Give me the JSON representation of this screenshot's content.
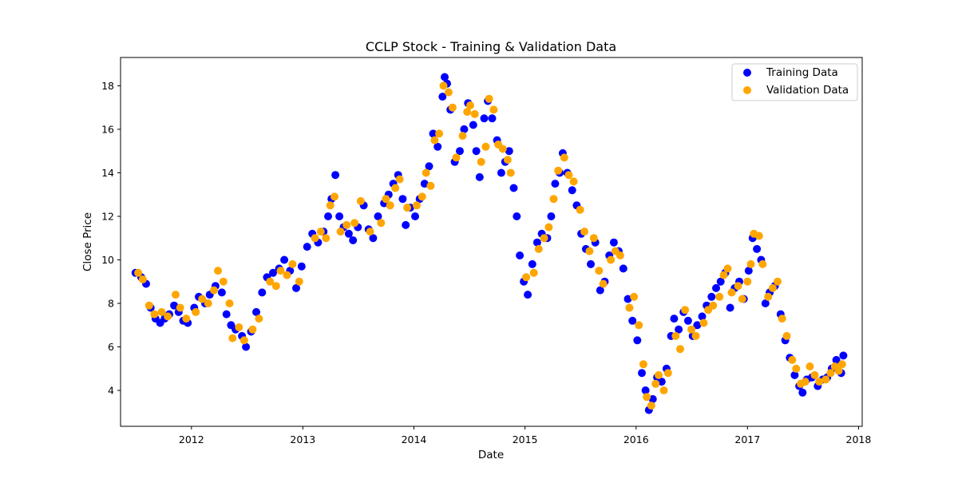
{
  "chart_data": {
    "type": "scatter",
    "title": "CCLP Stock - Training & Validation Data",
    "xlabel": "Date",
    "ylabel": "Close Price",
    "xlim": [
      "2011-05-13",
      "2018-01-13"
    ],
    "ylim": [
      2.35,
      19.3
    ],
    "x_ticks": [
      "2012",
      "2013",
      "2014",
      "2015",
      "2016",
      "2017",
      "2018"
    ],
    "y_ticks": [
      4,
      6,
      8,
      10,
      12,
      14,
      16,
      18
    ],
    "grid": false,
    "legend_position": "top-right",
    "series": [
      {
        "name": "Training Data",
        "color": "#0000ff",
        "points": [
          [
            "2011-07-01",
            9.4
          ],
          [
            "2011-07-20",
            9.2
          ],
          [
            "2011-08-05",
            8.9
          ],
          [
            "2011-08-20",
            7.8
          ],
          [
            "2011-09-05",
            7.3
          ],
          [
            "2011-09-20",
            7.1
          ],
          [
            "2011-10-05",
            7.3
          ],
          [
            "2011-10-20",
            7.5
          ],
          [
            "2011-11-05",
            7.9
          ],
          [
            "2011-11-20",
            7.6
          ],
          [
            "2011-12-05",
            7.2
          ],
          [
            "2011-12-20",
            7.1
          ],
          [
            "2012-01-10",
            7.8
          ],
          [
            "2012-01-25",
            8.3
          ],
          [
            "2012-02-15",
            8.0
          ],
          [
            "2012-03-01",
            8.4
          ],
          [
            "2012-03-20",
            8.8
          ],
          [
            "2012-04-10",
            8.5
          ],
          [
            "2012-04-25",
            7.5
          ],
          [
            "2012-05-10",
            7.0
          ],
          [
            "2012-05-25",
            6.8
          ],
          [
            "2012-06-15",
            6.5
          ],
          [
            "2012-06-28",
            6.0
          ],
          [
            "2012-07-15",
            6.7
          ],
          [
            "2012-08-01",
            7.6
          ],
          [
            "2012-08-20",
            8.5
          ],
          [
            "2012-09-05",
            9.2
          ],
          [
            "2012-09-25",
            9.4
          ],
          [
            "2012-10-15",
            9.6
          ],
          [
            "2012-11-01",
            10.0
          ],
          [
            "2012-11-20",
            9.5
          ],
          [
            "2012-12-10",
            8.7
          ],
          [
            "2012-12-28",
            9.7
          ],
          [
            "2013-01-15",
            10.6
          ],
          [
            "2013-02-01",
            11.2
          ],
          [
            "2013-02-20",
            10.8
          ],
          [
            "2013-03-10",
            11.3
          ],
          [
            "2013-03-25",
            12.0
          ],
          [
            "2013-04-05",
            12.8
          ],
          [
            "2013-04-18",
            13.9
          ],
          [
            "2013-05-01",
            12.0
          ],
          [
            "2013-05-15",
            11.5
          ],
          [
            "2013-06-01",
            11.2
          ],
          [
            "2013-06-15",
            10.9
          ],
          [
            "2013-07-01",
            11.5
          ],
          [
            "2013-07-20",
            12.5
          ],
          [
            "2013-08-05",
            11.4
          ],
          [
            "2013-08-20",
            11.0
          ],
          [
            "2013-09-05",
            12.0
          ],
          [
            "2013-09-25",
            12.6
          ],
          [
            "2013-10-10",
            13.0
          ],
          [
            "2013-10-25",
            13.5
          ],
          [
            "2013-11-10",
            13.9
          ],
          [
            "2013-11-25",
            12.8
          ],
          [
            "2013-12-05",
            11.6
          ],
          [
            "2013-12-20",
            12.4
          ],
          [
            "2014-01-05",
            12.0
          ],
          [
            "2014-01-20",
            12.8
          ],
          [
            "2014-02-05",
            13.5
          ],
          [
            "2014-02-20",
            14.3
          ],
          [
            "2014-03-05",
            15.8
          ],
          [
            "2014-03-20",
            15.2
          ],
          [
            "2014-04-05",
            17.5
          ],
          [
            "2014-04-12",
            18.4
          ],
          [
            "2014-04-20",
            18.1
          ],
          [
            "2014-05-01",
            16.9
          ],
          [
            "2014-05-15",
            14.5
          ],
          [
            "2014-06-01",
            15.0
          ],
          [
            "2014-06-15",
            16.0
          ],
          [
            "2014-06-28",
            17.2
          ],
          [
            "2014-07-15",
            16.2
          ],
          [
            "2014-07-25",
            15.0
          ],
          [
            "2014-08-05",
            13.8
          ],
          [
            "2014-08-20",
            16.5
          ],
          [
            "2014-09-01",
            17.3
          ],
          [
            "2014-09-15",
            16.5
          ],
          [
            "2014-10-01",
            15.5
          ],
          [
            "2014-10-15",
            14.0
          ],
          [
            "2014-10-28",
            14.5
          ],
          [
            "2014-11-10",
            15.0
          ],
          [
            "2014-11-25",
            13.3
          ],
          [
            "2014-12-05",
            12.0
          ],
          [
            "2014-12-15",
            10.2
          ],
          [
            "2014-12-28",
            9.0
          ],
          [
            "2015-01-10",
            8.4
          ],
          [
            "2015-01-25",
            9.8
          ],
          [
            "2015-02-10",
            10.8
          ],
          [
            "2015-02-25",
            11.2
          ],
          [
            "2015-03-15",
            11.0
          ],
          [
            "2015-03-28",
            12.0
          ],
          [
            "2015-04-10",
            13.5
          ],
          [
            "2015-04-25",
            14.0
          ],
          [
            "2015-05-05",
            14.9
          ],
          [
            "2015-05-20",
            14.0
          ],
          [
            "2015-06-05",
            13.2
          ],
          [
            "2015-06-20",
            12.5
          ],
          [
            "2015-07-05",
            11.2
          ],
          [
            "2015-07-20",
            10.5
          ],
          [
            "2015-08-05",
            9.8
          ],
          [
            "2015-08-20",
            10.8
          ],
          [
            "2015-09-05",
            8.6
          ],
          [
            "2015-09-20",
            9.0
          ],
          [
            "2015-10-05",
            10.2
          ],
          [
            "2015-10-20",
            10.8
          ],
          [
            "2015-11-05",
            10.4
          ],
          [
            "2015-11-20",
            9.6
          ],
          [
            "2015-12-05",
            8.2
          ],
          [
            "2015-12-20",
            7.2
          ],
          [
            "2016-01-05",
            6.3
          ],
          [
            "2016-01-20",
            4.8
          ],
          [
            "2016-02-01",
            4.0
          ],
          [
            "2016-02-12",
            3.1
          ],
          [
            "2016-02-25",
            3.6
          ],
          [
            "2016-03-10",
            4.6
          ],
          [
            "2016-03-25",
            4.4
          ],
          [
            "2016-04-10",
            5.0
          ],
          [
            "2016-04-25",
            6.5
          ],
          [
            "2016-05-05",
            7.3
          ],
          [
            "2016-05-20",
            6.8
          ],
          [
            "2016-06-05",
            7.6
          ],
          [
            "2016-06-20",
            7.2
          ],
          [
            "2016-07-05",
            6.5
          ],
          [
            "2016-07-20",
            7.0
          ],
          [
            "2016-08-05",
            7.4
          ],
          [
            "2016-08-20",
            7.9
          ],
          [
            "2016-09-05",
            8.3
          ],
          [
            "2016-09-20",
            8.7
          ],
          [
            "2016-10-05",
            9.0
          ],
          [
            "2016-10-20",
            9.4
          ],
          [
            "2016-11-05",
            7.8
          ],
          [
            "2016-11-20",
            8.7
          ],
          [
            "2016-12-05",
            9.0
          ],
          [
            "2016-12-20",
            8.2
          ],
          [
            "2017-01-05",
            9.5
          ],
          [
            "2017-01-18",
            11.0
          ],
          [
            "2017-02-01",
            10.5
          ],
          [
            "2017-02-15",
            10.0
          ],
          [
            "2017-03-01",
            8.0
          ],
          [
            "2017-03-15",
            8.5
          ],
          [
            "2017-04-01",
            8.8
          ],
          [
            "2017-04-20",
            7.5
          ],
          [
            "2017-05-05",
            6.3
          ],
          [
            "2017-05-20",
            5.5
          ],
          [
            "2017-06-05",
            4.7
          ],
          [
            "2017-06-20",
            4.2
          ],
          [
            "2017-07-01",
            3.9
          ],
          [
            "2017-07-15",
            4.5
          ],
          [
            "2017-08-01",
            4.6
          ],
          [
            "2017-08-20",
            4.2
          ],
          [
            "2017-09-05",
            4.5
          ],
          [
            "2017-09-20",
            4.6
          ],
          [
            "2017-10-05",
            5.0
          ],
          [
            "2017-10-20",
            5.4
          ],
          [
            "2017-11-05",
            4.8
          ],
          [
            "2017-11-12",
            5.6
          ]
        ]
      },
      {
        "name": "Validation Data",
        "color": "#ffa500",
        "points": [
          [
            "2011-07-10",
            9.4
          ],
          [
            "2011-07-25",
            9.1
          ],
          [
            "2011-08-15",
            7.9
          ],
          [
            "2011-09-01",
            7.5
          ],
          [
            "2011-09-25",
            7.6
          ],
          [
            "2011-10-15",
            7.4
          ],
          [
            "2011-11-10",
            8.4
          ],
          [
            "2011-11-25",
            7.8
          ],
          [
            "2011-12-15",
            7.3
          ],
          [
            "2012-01-15",
            7.6
          ],
          [
            "2012-02-05",
            8.2
          ],
          [
            "2012-02-25",
            8.0
          ],
          [
            "2012-03-15",
            8.6
          ],
          [
            "2012-03-28",
            9.5
          ],
          [
            "2012-04-15",
            9.0
          ],
          [
            "2012-05-05",
            8.0
          ],
          [
            "2012-05-15",
            6.4
          ],
          [
            "2012-06-05",
            6.9
          ],
          [
            "2012-06-22",
            6.3
          ],
          [
            "2012-07-20",
            6.8
          ],
          [
            "2012-08-10",
            7.3
          ],
          [
            "2012-09-15",
            9.0
          ],
          [
            "2012-10-05",
            8.8
          ],
          [
            "2012-10-20",
            9.5
          ],
          [
            "2012-11-10",
            9.3
          ],
          [
            "2012-11-28",
            9.8
          ],
          [
            "2012-12-20",
            9.0
          ],
          [
            "2013-02-10",
            11.0
          ],
          [
            "2013-03-01",
            11.3
          ],
          [
            "2013-03-18",
            11.0
          ],
          [
            "2013-04-01",
            12.5
          ],
          [
            "2013-04-15",
            12.9
          ],
          [
            "2013-05-05",
            11.3
          ],
          [
            "2013-05-25",
            11.6
          ],
          [
            "2013-06-20",
            11.7
          ],
          [
            "2013-07-10",
            12.7
          ],
          [
            "2013-08-10",
            11.3
          ],
          [
            "2013-09-15",
            11.7
          ],
          [
            "2013-10-01",
            12.8
          ],
          [
            "2013-10-15",
            12.5
          ],
          [
            "2013-11-01",
            13.3
          ],
          [
            "2013-11-15",
            13.7
          ],
          [
            "2013-12-10",
            12.4
          ],
          [
            "2014-01-10",
            12.5
          ],
          [
            "2014-01-28",
            12.9
          ],
          [
            "2014-02-10",
            14.0
          ],
          [
            "2014-02-25",
            13.4
          ],
          [
            "2014-03-10",
            15.5
          ],
          [
            "2014-03-25",
            15.8
          ],
          [
            "2014-04-08",
            18.0
          ],
          [
            "2014-04-25",
            17.7
          ],
          [
            "2014-05-08",
            17.0
          ],
          [
            "2014-05-20",
            14.7
          ],
          [
            "2014-06-10",
            15.7
          ],
          [
            "2014-06-25",
            16.8
          ],
          [
            "2014-07-05",
            17.1
          ],
          [
            "2014-07-20",
            16.7
          ],
          [
            "2014-08-10",
            14.5
          ],
          [
            "2014-08-25",
            15.2
          ],
          [
            "2014-09-05",
            17.4
          ],
          [
            "2014-09-20",
            16.9
          ],
          [
            "2014-10-05",
            15.3
          ],
          [
            "2014-10-20",
            15.1
          ],
          [
            "2014-11-05",
            14.6
          ],
          [
            "2014-11-15",
            14.0
          ],
          [
            "2015-01-05",
            9.2
          ],
          [
            "2015-01-30",
            9.4
          ],
          [
            "2015-02-15",
            10.5
          ],
          [
            "2015-03-05",
            11.0
          ],
          [
            "2015-03-20",
            11.5
          ],
          [
            "2015-04-05",
            12.8
          ],
          [
            "2015-04-20",
            14.1
          ],
          [
            "2015-05-10",
            14.7
          ],
          [
            "2015-05-25",
            13.9
          ],
          [
            "2015-06-10",
            13.6
          ],
          [
            "2015-07-01",
            12.3
          ],
          [
            "2015-07-15",
            11.3
          ],
          [
            "2015-08-01",
            10.4
          ],
          [
            "2015-08-15",
            11.0
          ],
          [
            "2015-09-01",
            9.5
          ],
          [
            "2015-09-15",
            8.9
          ],
          [
            "2015-10-10",
            10.0
          ],
          [
            "2015-10-25",
            10.4
          ],
          [
            "2015-11-10",
            10.2
          ],
          [
            "2015-12-10",
            7.8
          ],
          [
            "2015-12-25",
            8.3
          ],
          [
            "2016-01-10",
            7.0
          ],
          [
            "2016-01-25",
            5.2
          ],
          [
            "2016-02-05",
            3.7
          ],
          [
            "2016-02-20",
            3.3
          ],
          [
            "2016-03-05",
            4.3
          ],
          [
            "2016-03-15",
            4.7
          ],
          [
            "2016-04-01",
            4.0
          ],
          [
            "2016-04-15",
            4.8
          ],
          [
            "2016-05-10",
            6.5
          ],
          [
            "2016-05-25",
            5.9
          ],
          [
            "2016-06-10",
            7.7
          ],
          [
            "2016-07-01",
            6.8
          ],
          [
            "2016-07-15",
            6.5
          ],
          [
            "2016-08-10",
            7.1
          ],
          [
            "2016-08-25",
            7.7
          ],
          [
            "2016-09-10",
            7.9
          ],
          [
            "2016-10-01",
            8.3
          ],
          [
            "2016-10-15",
            9.3
          ],
          [
            "2016-10-28",
            9.6
          ],
          [
            "2016-11-10",
            8.5
          ],
          [
            "2016-12-01",
            8.8
          ],
          [
            "2016-12-15",
            8.2
          ],
          [
            "2017-01-01",
            9.0
          ],
          [
            "2017-01-12",
            9.8
          ],
          [
            "2017-01-22",
            11.2
          ],
          [
            "2017-02-08",
            11.1
          ],
          [
            "2017-02-20",
            9.8
          ],
          [
            "2017-03-10",
            8.3
          ],
          [
            "2017-03-25",
            8.7
          ],
          [
            "2017-04-10",
            9.0
          ],
          [
            "2017-04-25",
            7.3
          ],
          [
            "2017-05-10",
            6.5
          ],
          [
            "2017-05-28",
            5.4
          ],
          [
            "2017-06-10",
            5.0
          ],
          [
            "2017-06-25",
            4.3
          ],
          [
            "2017-07-10",
            4.4
          ],
          [
            "2017-07-25",
            5.1
          ],
          [
            "2017-08-10",
            4.7
          ],
          [
            "2017-08-25",
            4.4
          ],
          [
            "2017-09-15",
            4.5
          ],
          [
            "2017-10-01",
            4.8
          ],
          [
            "2017-10-15",
            5.1
          ],
          [
            "2017-10-28",
            4.9
          ],
          [
            "2017-11-08",
            5.2
          ]
        ]
      }
    ]
  }
}
